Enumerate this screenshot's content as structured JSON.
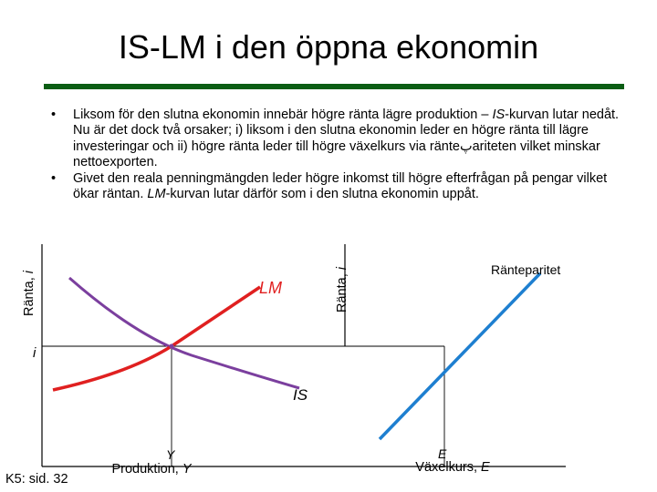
{
  "slide": {
    "title": "IS-LM i den öppna ekonomin",
    "accent_rule_color": "#0b5d14",
    "bullets": [
      {
        "marker": "•",
        "segments": [
          {
            "text": "Liksom för den slutna ekonomin innebär högre ränta lägre produktion – ",
            "italic": false
          },
          {
            "text": "IS",
            "italic": true
          },
          {
            "text": "-kurvan lutar nedåt. Nu är det dock två orsaker; i) liksom i den slutna ekonomin leder en högre ränta till lägre investeringar och ii) högre ränta leder till högre växelkurs via ränteپariteten vilket minskar nettoexporten.",
            "italic": false
          }
        ]
      },
      {
        "marker": "•",
        "segments": [
          {
            "text": "Givet den reala penningmängden leder högre inkomst till högre efterfrågan på pengar vilket ökar räntan. ",
            "italic": false
          },
          {
            "text": "LM",
            "italic": true
          },
          {
            "text": "-kurvan lutar därför som i den slutna ekonomin uppåt.",
            "italic": false
          }
        ]
      }
    ],
    "slide_ref": "K5: sid. 32"
  },
  "chart_data": [
    {
      "type": "line",
      "title": "",
      "ylabel_text": "Ränta, ",
      "ylabel_var": "i",
      "xlabel_text": "Produktion, ",
      "xlabel_var": "Y",
      "x_tick_label": "Y",
      "y_tick_label": "i",
      "series": [
        {
          "name": "LM",
          "color": "#e02020",
          "label_color": "#e02020"
        },
        {
          "name": "IS",
          "color": "#7b3f9e",
          "label_color": "#000000"
        }
      ],
      "equilibrium_marked": true
    },
    {
      "type": "line",
      "title": "",
      "ylabel_text": "Ränta, ",
      "ylabel_var": "i",
      "xlabel_text": "Växelkurs, ",
      "xlabel_var": "E",
      "x_tick_label": "E",
      "series": [
        {
          "name": "Ränteparitet",
          "color": "#1e7fd0",
          "label_color": "#000000"
        }
      ]
    }
  ]
}
